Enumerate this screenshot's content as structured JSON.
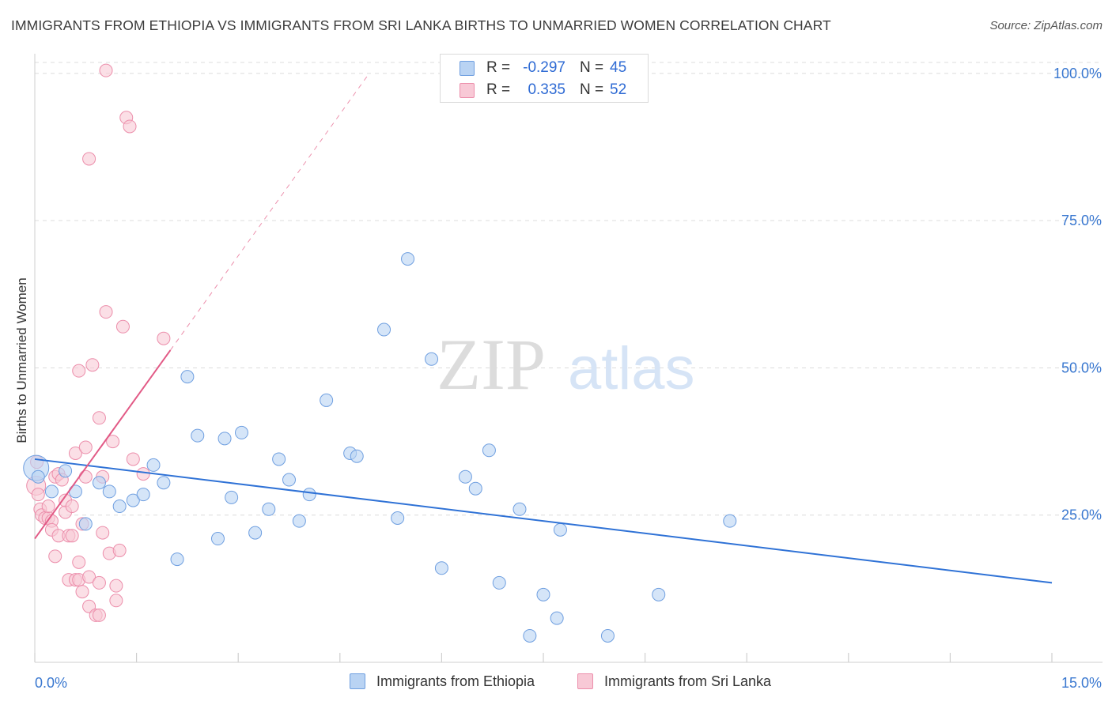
{
  "header": {
    "title": "IMMIGRANTS FROM ETHIOPIA VS IMMIGRANTS FROM SRI LANKA BIRTHS TO UNMARRIED WOMEN CORRELATION CHART",
    "source": "Source: ZipAtlas.com"
  },
  "watermark": {
    "part1": "ZIP",
    "part2": "atlas"
  },
  "legend_top": {
    "rows": [
      {
        "r_label": "R =",
        "r_value": "-0.297",
        "n_label": "N =",
        "n_value": "45"
      },
      {
        "r_label": "R =",
        "r_value": "0.335",
        "n_label": "N =",
        "n_value": "52"
      }
    ]
  },
  "legend_bottom": {
    "items": [
      {
        "label": "Immigrants from Ethiopia"
      },
      {
        "label": "Immigrants from Sri Lanka"
      }
    ]
  },
  "colors": {
    "ethiopia_fill": "#b9d3f3",
    "ethiopia_stroke": "#6f9fe0",
    "ethiopia_line": "#2f72d6",
    "srilanka_fill": "#f8c9d6",
    "srilanka_stroke": "#ec8eab",
    "srilanka_line": "#e25a86",
    "axis_label": "#3a78d0",
    "grid": "#dcdcdc"
  },
  "chart_data": {
    "type": "scatter",
    "title": "IMMIGRANTS FROM ETHIOPIA VS IMMIGRANTS FROM SRI LANKA BIRTHS TO UNMARRIED WOMEN CORRELATION CHART",
    "xlabel": "",
    "ylabel": "Births to Unmarried Women",
    "xlim": [
      0,
      15
    ],
    "ylim": [
      0,
      102
    ],
    "x_tick_labels": [
      "0.0%",
      "15.0%"
    ],
    "y_tick_labels": [
      {
        "value": 25,
        "label": "25.0%"
      },
      {
        "value": 50,
        "label": "50.0%"
      },
      {
        "value": 75,
        "label": "75.0%"
      },
      {
        "value": 100,
        "label": "100.0%"
      }
    ],
    "grid": true,
    "series": [
      {
        "name": "Immigrants from Ethiopia",
        "r": -0.297,
        "n": 45,
        "trend": {
          "x": [
            0,
            15
          ],
          "y": [
            34.5,
            13.5
          ],
          "dashed_extension": false
        },
        "points": [
          [
            0.02,
            33.0,
            3
          ],
          [
            0.05,
            31.5,
            1
          ],
          [
            0.25,
            29.0,
            1
          ],
          [
            0.45,
            32.5,
            1
          ],
          [
            0.6,
            29.0,
            1
          ],
          [
            0.75,
            23.5,
            1
          ],
          [
            0.95,
            30.5,
            1
          ],
          [
            1.1,
            29.0,
            1
          ],
          [
            1.25,
            26.5,
            1
          ],
          [
            1.45,
            27.5,
            1
          ],
          [
            1.6,
            28.5,
            1
          ],
          [
            1.75,
            33.5,
            1
          ],
          [
            1.9,
            30.5,
            1
          ],
          [
            2.1,
            17.5,
            1
          ],
          [
            2.25,
            48.5,
            1
          ],
          [
            2.4,
            38.5,
            1
          ],
          [
            2.7,
            21.0,
            1
          ],
          [
            2.8,
            38.0,
            1
          ],
          [
            2.9,
            28.0,
            1
          ],
          [
            3.05,
            39.0,
            1
          ],
          [
            3.25,
            22.0,
            1
          ],
          [
            3.45,
            26.0,
            1
          ],
          [
            3.6,
            34.5,
            1
          ],
          [
            3.75,
            31.0,
            1
          ],
          [
            3.9,
            24.0,
            1
          ],
          [
            4.05,
            28.5,
            1
          ],
          [
            4.3,
            44.5,
            1
          ],
          [
            4.65,
            35.5,
            1
          ],
          [
            4.75,
            35.0,
            1
          ],
          [
            5.15,
            56.5,
            1
          ],
          [
            5.35,
            24.5,
            1
          ],
          [
            5.5,
            68.5,
            1
          ],
          [
            5.85,
            51.5,
            1
          ],
          [
            6.0,
            16.0,
            1
          ],
          [
            6.35,
            31.5,
            1
          ],
          [
            6.5,
            29.5,
            1
          ],
          [
            6.7,
            36.0,
            1
          ],
          [
            6.85,
            13.5,
            1
          ],
          [
            7.15,
            26.0,
            1
          ],
          [
            7.3,
            4.5,
            1
          ],
          [
            7.5,
            11.5,
            1
          ],
          [
            7.7,
            7.5,
            1
          ],
          [
            7.75,
            22.5,
            1
          ],
          [
            8.45,
            4.5,
            1
          ],
          [
            9.2,
            11.5,
            1
          ],
          [
            10.25,
            24.0,
            1
          ]
        ]
      },
      {
        "name": "Immigrants from Sri Lanka",
        "r": 0.335,
        "n": 52,
        "trend": {
          "x": [
            0,
            2.0
          ],
          "y": [
            21.0,
            53.0
          ],
          "dashed_extension": {
            "x": [
              2.0,
              4.9
            ],
            "y": [
              53.0,
              99.5
            ]
          }
        },
        "points": [
          [
            0.02,
            30.0,
            2
          ],
          [
            0.03,
            34.0,
            1
          ],
          [
            0.05,
            28.5,
            1
          ],
          [
            0.08,
            26.0,
            1
          ],
          [
            0.1,
            25.0,
            1
          ],
          [
            0.15,
            24.5,
            1
          ],
          [
            0.2,
            24.5,
            1
          ],
          [
            0.2,
            26.5,
            1
          ],
          [
            0.25,
            24.0,
            1
          ],
          [
            0.25,
            22.5,
            1
          ],
          [
            0.3,
            31.5,
            1
          ],
          [
            0.3,
            18.0,
            1
          ],
          [
            0.35,
            32.0,
            1
          ],
          [
            0.35,
            21.5,
            1
          ],
          [
            0.4,
            31.0,
            1
          ],
          [
            0.45,
            25.5,
            1
          ],
          [
            0.45,
            27.5,
            1
          ],
          [
            0.5,
            21.5,
            1
          ],
          [
            0.5,
            14.0,
            1
          ],
          [
            0.55,
            21.5,
            1
          ],
          [
            0.55,
            26.5,
            1
          ],
          [
            0.6,
            35.5,
            1
          ],
          [
            0.6,
            14.0,
            1
          ],
          [
            0.65,
            49.5,
            1
          ],
          [
            0.65,
            14.0,
            1
          ],
          [
            0.65,
            17.0,
            1
          ],
          [
            0.7,
            23.5,
            1
          ],
          [
            0.7,
            12.0,
            1
          ],
          [
            0.75,
            36.5,
            1
          ],
          [
            0.75,
            31.5,
            1
          ],
          [
            0.8,
            14.5,
            1
          ],
          [
            0.8,
            9.5,
            1
          ],
          [
            0.8,
            85.5,
            1
          ],
          [
            0.85,
            50.5,
            1
          ],
          [
            0.9,
            8.0,
            1
          ],
          [
            0.95,
            41.5,
            1
          ],
          [
            0.95,
            13.5,
            1
          ],
          [
            0.95,
            8.0,
            1
          ],
          [
            1.0,
            31.5,
            1
          ],
          [
            1.0,
            22.0,
            1
          ],
          [
            1.05,
            59.5,
            1
          ],
          [
            1.05,
            100.5,
            1
          ],
          [
            1.1,
            18.5,
            1
          ],
          [
            1.15,
            37.5,
            1
          ],
          [
            1.2,
            10.5,
            1
          ],
          [
            1.2,
            13.0,
            1
          ],
          [
            1.25,
            19.0,
            1
          ],
          [
            1.3,
            57.0,
            1
          ],
          [
            1.35,
            92.5,
            1
          ],
          [
            1.4,
            91.0,
            1
          ],
          [
            1.45,
            34.5,
            1
          ],
          [
            1.6,
            32.0,
            1
          ],
          [
            1.9,
            55.0,
            1
          ]
        ]
      }
    ]
  }
}
